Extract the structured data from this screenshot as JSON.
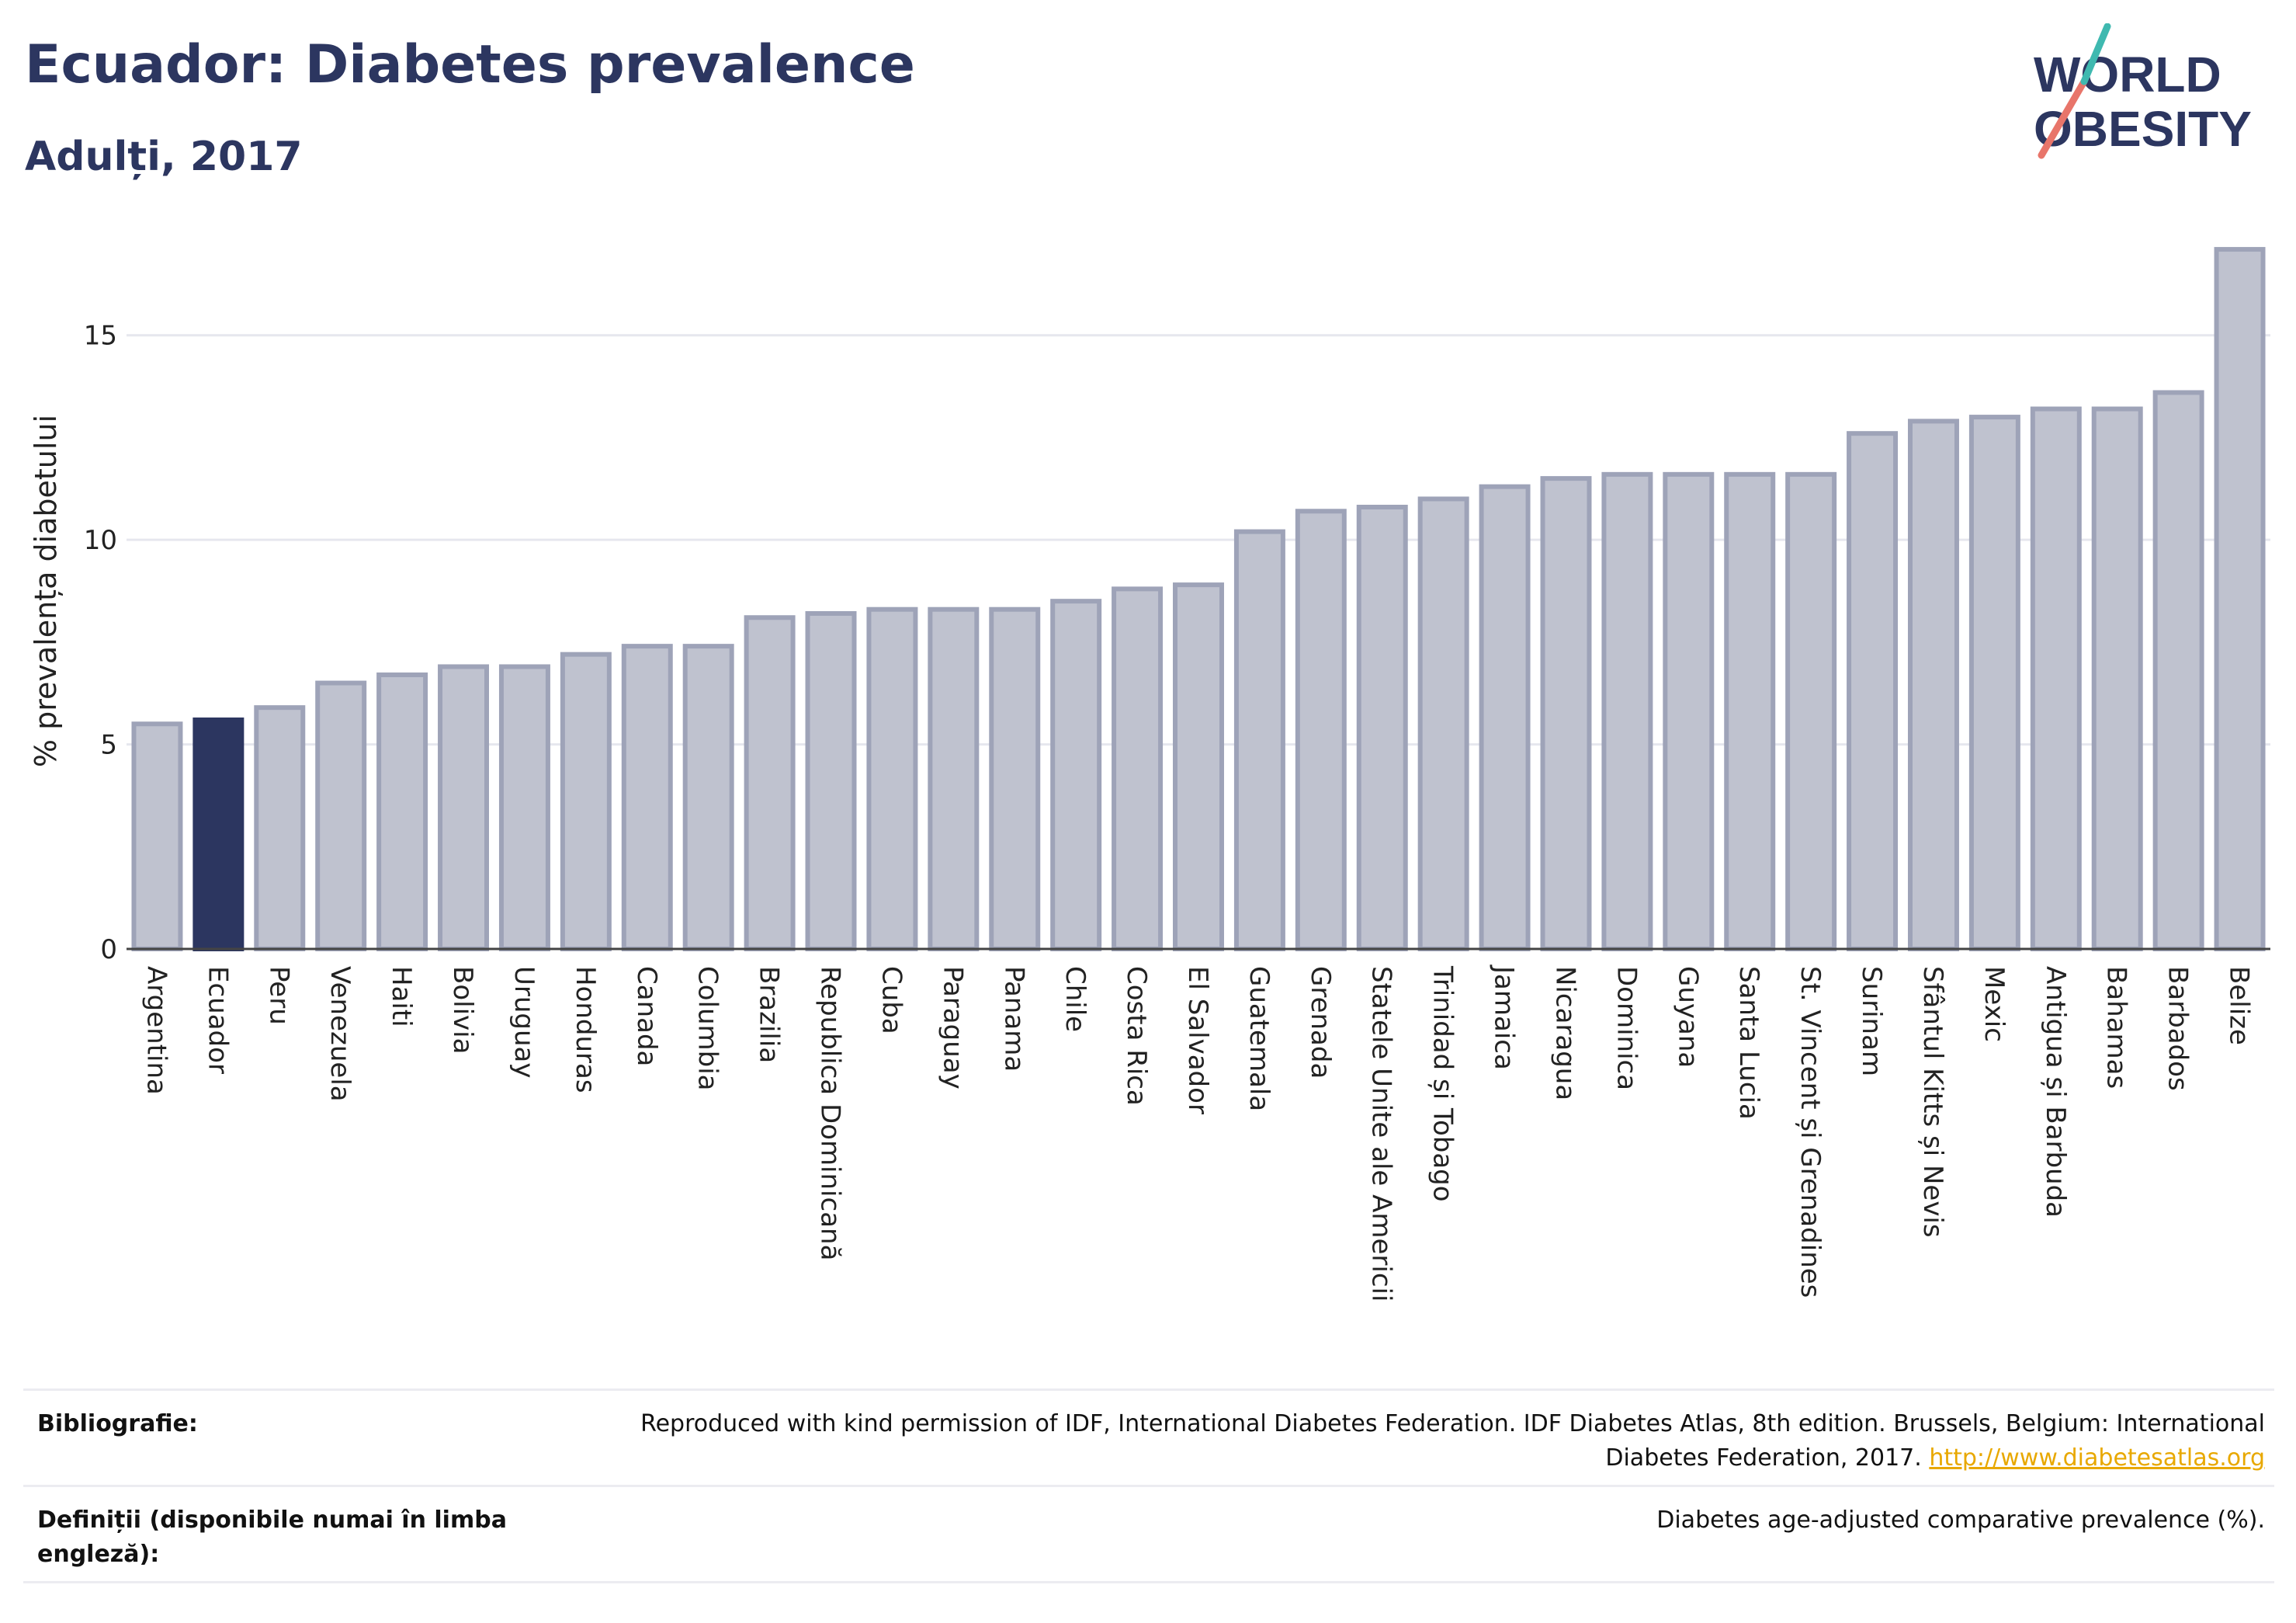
{
  "header": {
    "title": "Ecuador: Diabetes prevalence",
    "subtitle": "Adulți, 2017",
    "logo_line1": "WORLD",
    "logo_line2": "OBESITY"
  },
  "colors": {
    "title": "#2c3660",
    "highlight_bar": "#2c3660",
    "bar_fill": "#bfc2cf",
    "bar_stroke": "#9ea3b8",
    "grid": "#e6e7ee",
    "logo_teal": "#3fb9b0",
    "logo_coral": "#e8756a",
    "link": "#e8a800"
  },
  "chart_data": {
    "type": "bar",
    "ylabel": "% prevalența diabetului",
    "ylim": [
      0,
      17.5
    ],
    "yticks": [
      0,
      5,
      10,
      15
    ],
    "grid": true,
    "highlight": "Ecuador",
    "categories": [
      "Argentina",
      "Ecuador",
      "Peru",
      "Venezuela",
      "Haiti",
      "Bolivia",
      "Uruguay",
      "Honduras",
      "Canada",
      "Columbia",
      "Brazilia",
      "Republica Dominicană",
      "Cuba",
      "Paraguay",
      "Panama",
      "Chile",
      "Costa Rica",
      "El Salvador",
      "Guatemala",
      "Grenada",
      "Statele Unite ale Americii",
      "Trinidad și Tobago",
      "Jamaica",
      "Nicaragua",
      "Dominica",
      "Guyana",
      "Santa Lucia",
      "St. Vincent și Grenadines",
      "Surinam",
      "Sfântul Kitts și Nevis",
      "Mexic",
      "Antigua și Barbuda",
      "Bahamas",
      "Barbados",
      "Belize"
    ],
    "values": [
      5.5,
      5.6,
      5.9,
      6.5,
      6.7,
      6.9,
      6.9,
      7.2,
      7.4,
      7.4,
      8.1,
      8.2,
      8.3,
      8.3,
      8.3,
      8.5,
      8.8,
      8.9,
      10.2,
      10.7,
      10.8,
      11.0,
      11.3,
      11.5,
      11.6,
      11.6,
      11.6,
      11.6,
      12.6,
      12.9,
      13.0,
      13.2,
      13.2,
      13.6,
      17.1
    ]
  },
  "footer": {
    "bibliography_label": "Bibliografie:",
    "bibliography_text": "Reproduced with kind permission of IDF, International Diabetes Federation. IDF Diabetes Atlas, 8th edition. Brussels, Belgium: International Diabetes Federation, 2017.",
    "bibliography_link": "http://www.diabetesatlas.org",
    "definitions_label": "Definiții (disponibile numai în limba engleză):",
    "definitions_text": "Diabetes age-adjusted comparative prevalence (%)."
  }
}
